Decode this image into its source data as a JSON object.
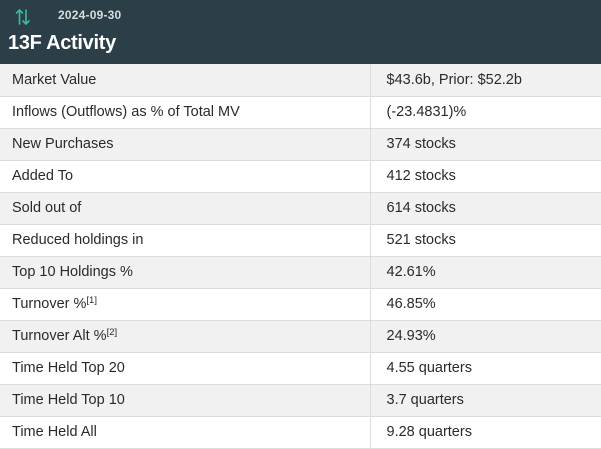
{
  "header": {
    "date": "2024-09-30",
    "title": "13F Activity",
    "icon": "swap-vertical-arrows-icon",
    "icon_color": "#3fb9a8",
    "background": "#2c3e47"
  },
  "rows": [
    {
      "label": "Market Value",
      "value": "$43.6b, Prior: $52.2b"
    },
    {
      "label": "Inflows (Outflows) as % of Total MV",
      "value": "(-23.4831)%",
      "value_color": "#d32f2f"
    },
    {
      "label": "New Purchases",
      "value": "374 stocks"
    },
    {
      "label": "Added To",
      "value": "412 stocks"
    },
    {
      "label": "Sold out of",
      "value": "614 stocks"
    },
    {
      "label": "Reduced holdings in",
      "value": "521 stocks"
    },
    {
      "label": "Top 10 Holdings %",
      "value": "42.61%"
    },
    {
      "label": "Turnover %",
      "footnote": "[1]",
      "value": "46.85%"
    },
    {
      "label": "Turnover Alt %",
      "footnote": "[2]",
      "value": "24.93%"
    },
    {
      "label": "Time Held Top 20",
      "value": "4.55 quarters"
    },
    {
      "label": "Time Held Top 10",
      "value": "3.7 quarters"
    },
    {
      "label": "Time Held All",
      "value": "9.28 quarters"
    }
  ]
}
